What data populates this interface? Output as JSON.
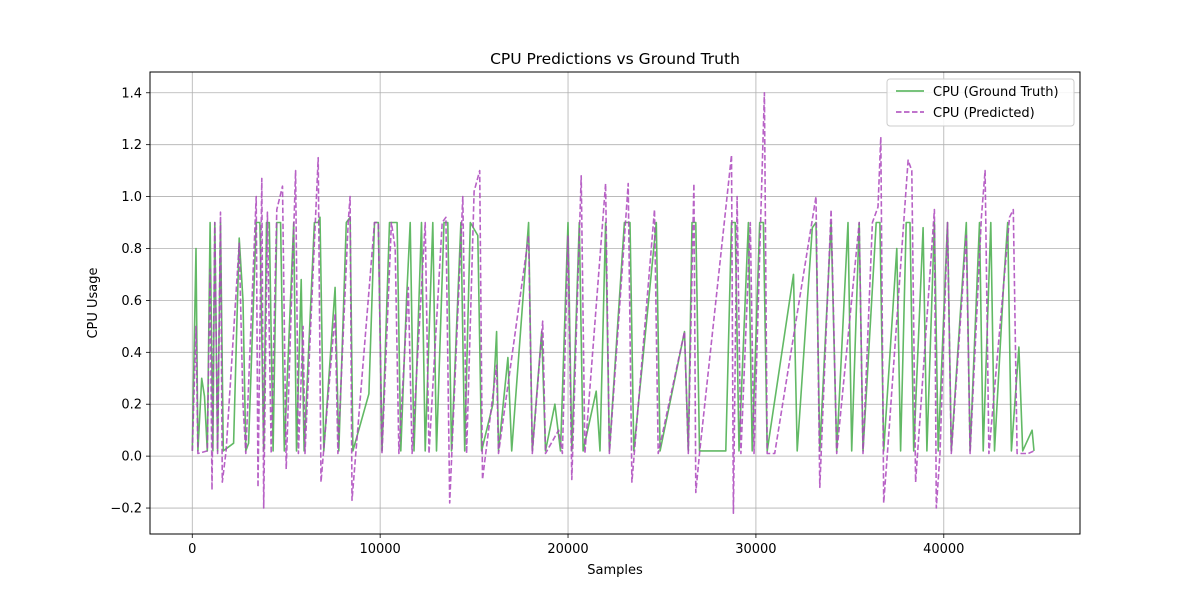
{
  "chart_data": {
    "type": "line",
    "title": "CPU Predictions vs Ground Truth",
    "xlabel": "Samples",
    "ylabel": "CPU Usage",
    "xlim": [
      -2250,
      47250
    ],
    "ylim": [
      -0.3,
      1.48
    ],
    "xticks": [
      0,
      10000,
      20000,
      30000,
      40000
    ],
    "xtick_labels": [
      "0",
      "10000",
      "20000",
      "30000",
      "40000"
    ],
    "yticks": [
      -0.2,
      0.0,
      0.2,
      0.4,
      0.6,
      0.8,
      1.0,
      1.2,
      1.4
    ],
    "ytick_labels": [
      "−0.2",
      "0.0",
      "0.2",
      "0.4",
      "0.6",
      "0.8",
      "1.0",
      "1.2",
      "1.4"
    ],
    "grid": true,
    "legend_position": "top-right",
    "colors": {
      "ground_truth": "#4caf50",
      "predicted": "#ab47bc"
    },
    "series": [
      {
        "name": "CPU (Ground Truth)",
        "style": "solid",
        "points": [
          [
            0,
            0.02
          ],
          [
            200,
            0.8
          ],
          [
            300,
            0.02
          ],
          [
            500,
            0.3
          ],
          [
            650,
            0.23
          ],
          [
            800,
            0.02
          ],
          [
            950,
            0.9
          ],
          [
            1100,
            0.02
          ],
          [
            1200,
            0.9
          ],
          [
            1350,
            0.02
          ],
          [
            1500,
            0.9
          ],
          [
            1650,
            0.02
          ],
          [
            2200,
            0.05
          ],
          [
            2500,
            0.84
          ],
          [
            2700,
            0.6
          ],
          [
            2850,
            0.02
          ],
          [
            3000,
            0.05
          ],
          [
            3400,
            0.9
          ],
          [
            3600,
            0.9
          ],
          [
            3800,
            0.02
          ],
          [
            3950,
            0.9
          ],
          [
            4100,
            0.9
          ],
          [
            4300,
            0.02
          ],
          [
            4500,
            0.9
          ],
          [
            4700,
            0.9
          ],
          [
            4900,
            0.02
          ],
          [
            5400,
            0.9
          ],
          [
            5550,
            0.02
          ],
          [
            5800,
            0.68
          ],
          [
            5950,
            0.02
          ],
          [
            6500,
            0.9
          ],
          [
            6700,
            0.9
          ],
          [
            6800,
            0.92
          ],
          [
            7000,
            0.02
          ],
          [
            7600,
            0.65
          ],
          [
            7800,
            0.02
          ],
          [
            8200,
            0.9
          ],
          [
            8400,
            0.92
          ],
          [
            8550,
            0.02
          ],
          [
            9400,
            0.24
          ],
          [
            9700,
            0.9
          ],
          [
            9900,
            0.9
          ],
          [
            10100,
            0.02
          ],
          [
            10500,
            0.9
          ],
          [
            10700,
            0.9
          ],
          [
            10900,
            0.9
          ],
          [
            11100,
            0.02
          ],
          [
            11400,
            0.6
          ],
          [
            11600,
            0.9
          ],
          [
            11800,
            0.02
          ],
          [
            12200,
            0.9
          ],
          [
            12400,
            0.02
          ],
          [
            12800,
            0.9
          ],
          [
            13000,
            0.02
          ],
          [
            13400,
            0.9
          ],
          [
            13600,
            0.9
          ],
          [
            13800,
            0.02
          ],
          [
            14300,
            0.9
          ],
          [
            14500,
            0.02
          ],
          [
            14800,
            0.9
          ],
          [
            15200,
            0.85
          ],
          [
            15400,
            0.02
          ],
          [
            16000,
            0.2
          ],
          [
            16200,
            0.48
          ],
          [
            16300,
            0.02
          ],
          [
            16800,
            0.38
          ],
          [
            17000,
            0.02
          ],
          [
            17900,
            0.9
          ],
          [
            18100,
            0.02
          ],
          [
            18600,
            0.48
          ],
          [
            18800,
            0.02
          ],
          [
            19300,
            0.2
          ],
          [
            19600,
            0.02
          ],
          [
            20000,
            0.9
          ],
          [
            20200,
            0.02
          ],
          [
            20600,
            0.9
          ],
          [
            20800,
            0.02
          ],
          [
            21500,
            0.25
          ],
          [
            21700,
            0.02
          ],
          [
            22000,
            0.9
          ],
          [
            22200,
            0.02
          ],
          [
            23000,
            0.9
          ],
          [
            23300,
            0.9
          ],
          [
            23500,
            0.02
          ],
          [
            24700,
            0.9
          ],
          [
            24900,
            0.02
          ],
          [
            26200,
            0.48
          ],
          [
            26400,
            0.02
          ],
          [
            26600,
            0.9
          ],
          [
            26800,
            0.9
          ],
          [
            27000,
            0.02
          ],
          [
            28400,
            0.02
          ],
          [
            28700,
            0.9
          ],
          [
            28900,
            0.9
          ],
          [
            29100,
            0.02
          ],
          [
            29600,
            0.9
          ],
          [
            29800,
            0.02
          ],
          [
            30200,
            0.9
          ],
          [
            30400,
            0.9
          ],
          [
            30600,
            0.02
          ],
          [
            32000,
            0.7
          ],
          [
            32200,
            0.02
          ],
          [
            33000,
            0.88
          ],
          [
            33200,
            0.9
          ],
          [
            33400,
            0.02
          ],
          [
            34000,
            0.9
          ],
          [
            34300,
            0.02
          ],
          [
            34900,
            0.9
          ],
          [
            35100,
            0.02
          ],
          [
            35500,
            0.9
          ],
          [
            35700,
            0.02
          ],
          [
            36400,
            0.9
          ],
          [
            36600,
            0.9
          ],
          [
            36800,
            0.02
          ],
          [
            37500,
            0.8
          ],
          [
            37700,
            0.02
          ],
          [
            38000,
            0.9
          ],
          [
            38200,
            0.9
          ],
          [
            38400,
            0.02
          ],
          [
            38900,
            0.88
          ],
          [
            39100,
            0.02
          ],
          [
            39500,
            0.9
          ],
          [
            39700,
            0.02
          ],
          [
            40200,
            0.9
          ],
          [
            40400,
            0.02
          ],
          [
            41200,
            0.9
          ],
          [
            41400,
            0.02
          ],
          [
            41900,
            0.9
          ],
          [
            42100,
            0.02
          ],
          [
            42500,
            0.9
          ],
          [
            42700,
            0.02
          ],
          [
            43200,
            0.68
          ],
          [
            43400,
            0.9
          ],
          [
            43600,
            0.02
          ],
          [
            44000,
            0.42
          ],
          [
            44200,
            0.02
          ],
          [
            44700,
            0.1
          ],
          [
            44800,
            0.02
          ]
        ]
      },
      {
        "name": "CPU (Predicted)",
        "style": "dashed",
        "points": [
          [
            0,
            0.02
          ],
          [
            200,
            0.5
          ],
          [
            300,
            0.01
          ],
          [
            800,
            0.02
          ],
          [
            950,
            0.72
          ],
          [
            1050,
            -0.13
          ],
          [
            1200,
            0.9
          ],
          [
            1350,
            0.01
          ],
          [
            1500,
            0.94
          ],
          [
            1600,
            -0.1
          ],
          [
            1800,
            0.02
          ],
          [
            2500,
            0.82
          ],
          [
            2700,
            0.2
          ],
          [
            2850,
            0.01
          ],
          [
            3400,
            1.0
          ],
          [
            3500,
            -0.12
          ],
          [
            3700,
            1.07
          ],
          [
            3800,
            -0.2
          ],
          [
            4000,
            0.94
          ],
          [
            4200,
            0.01
          ],
          [
            4500,
            0.95
          ],
          [
            4800,
            1.04
          ],
          [
            5000,
            -0.05
          ],
          [
            5500,
            1.1
          ],
          [
            5650,
            0.01
          ],
          [
            5900,
            0.5
          ],
          [
            6000,
            0.01
          ],
          [
            6700,
            1.15
          ],
          [
            6850,
            -0.1
          ],
          [
            7600,
            0.55
          ],
          [
            7750,
            0.01
          ],
          [
            8300,
            0.9
          ],
          [
            8400,
            1.0
          ],
          [
            8500,
            -0.17
          ],
          [
            9700,
            0.9
          ],
          [
            9900,
            0.9
          ],
          [
            10100,
            0.01
          ],
          [
            10600,
            0.9
          ],
          [
            10800,
            0.8
          ],
          [
            11000,
            0.01
          ],
          [
            11500,
            0.65
          ],
          [
            11700,
            0.01
          ],
          [
            12400,
            0.9
          ],
          [
            12600,
            0.01
          ],
          [
            13300,
            0.9
          ],
          [
            13500,
            0.92
          ],
          [
            13700,
            -0.18
          ],
          [
            14400,
            1.0
          ],
          [
            14600,
            0.01
          ],
          [
            15000,
            1.02
          ],
          [
            15300,
            1.1
          ],
          [
            15450,
            -0.09
          ],
          [
            16200,
            0.35
          ],
          [
            16300,
            0.01
          ],
          [
            17900,
            0.85
          ],
          [
            18100,
            0.01
          ],
          [
            18650,
            0.52
          ],
          [
            18800,
            0.01
          ],
          [
            19500,
            0.1
          ],
          [
            19700,
            0.01
          ],
          [
            20000,
            0.85
          ],
          [
            20200,
            -0.09
          ],
          [
            20700,
            1.08
          ],
          [
            20900,
            0.01
          ],
          [
            22000,
            1.05
          ],
          [
            22200,
            0.01
          ],
          [
            23200,
            1.05
          ],
          [
            23400,
            -0.1
          ],
          [
            24600,
            0.95
          ],
          [
            24800,
            0.01
          ],
          [
            26200,
            0.48
          ],
          [
            26400,
            0.01
          ],
          [
            26700,
            1.05
          ],
          [
            26800,
            -0.14
          ],
          [
            27000,
            0.01
          ],
          [
            28700,
            1.16
          ],
          [
            28800,
            -0.22
          ],
          [
            29000,
            1.0
          ],
          [
            29200,
            0.01
          ],
          [
            29700,
            0.9
          ],
          [
            29900,
            0.01
          ],
          [
            30300,
            1.02
          ],
          [
            30450,
            1.4
          ],
          [
            30600,
            0.01
          ],
          [
            31000,
            0.01
          ],
          [
            33200,
            1.0
          ],
          [
            33400,
            -0.12
          ],
          [
            34000,
            0.95
          ],
          [
            34300,
            0.01
          ],
          [
            35500,
            0.9
          ],
          [
            35700,
            0.01
          ],
          [
            36200,
            0.9
          ],
          [
            36500,
            0.96
          ],
          [
            36650,
            1.23
          ],
          [
            36800,
            -0.18
          ],
          [
            37000,
            0.01
          ],
          [
            38100,
            1.14
          ],
          [
            38300,
            1.1
          ],
          [
            38500,
            -0.1
          ],
          [
            39500,
            0.95
          ],
          [
            39600,
            -0.2
          ],
          [
            39800,
            0.01
          ],
          [
            40200,
            0.9
          ],
          [
            40400,
            0.01
          ],
          [
            41200,
            0.85
          ],
          [
            41400,
            0.01
          ],
          [
            42000,
            0.92
          ],
          [
            42200,
            1.1
          ],
          [
            42400,
            0.01
          ],
          [
            43500,
            0.92
          ],
          [
            43700,
            0.95
          ],
          [
            43900,
            0.01
          ],
          [
            44500,
            0.01
          ],
          [
            44800,
            0.02
          ]
        ]
      }
    ]
  }
}
